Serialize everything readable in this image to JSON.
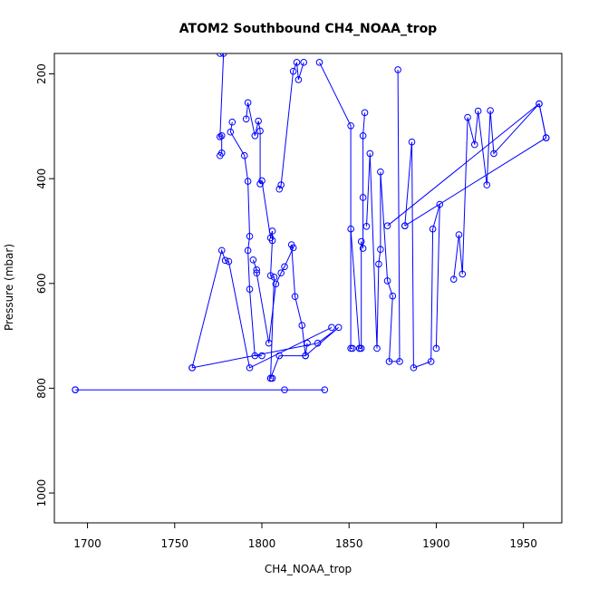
{
  "chart_data": {
    "type": "scatter",
    "title": "ATOM2 Southbound CH4_NOAA_trop",
    "xlabel": "CH4_NOAA_trop",
    "ylabel": "Pressure (mbar)",
    "xlim": [
      1681,
      1972
    ],
    "ylim": [
      1057,
      161
    ],
    "y_reversed": true,
    "x_ticks": [
      1700,
      1750,
      1800,
      1850,
      1900,
      1950
    ],
    "y_ticks": [
      200,
      400,
      600,
      800,
      1000
    ],
    "grid": false,
    "legend": "none",
    "series_color": "#0000ff",
    "series": [
      {
        "values": [
          [
            1693,
            803
          ],
          [
            1836,
            803
          ],
          [
            1813,
            803
          ],
          [
            1693,
            803
          ]
        ]
      },
      {
        "values": [
          [
            1760,
            761
          ],
          [
            1777,
            537
          ],
          [
            1779,
            556
          ],
          [
            1781,
            558
          ],
          [
            1793,
            761
          ],
          [
            1840,
            684
          ]
        ]
      },
      {
        "values": [
          [
            1760,
            761
          ],
          [
            1832,
            714
          ],
          [
            1844,
            684
          ],
          [
            1825,
            738
          ],
          [
            1810,
            738
          ],
          [
            1805,
            781
          ],
          [
            1806,
            781
          ]
        ]
      },
      {
        "values": [
          [
            1776,
            356
          ],
          [
            1777,
            351
          ],
          [
            1777,
            318
          ],
          [
            1776,
            320
          ],
          [
            1778,
            161
          ],
          [
            1776,
            161
          ]
        ]
      },
      {
        "values": [
          [
            1783,
            292
          ],
          [
            1782,
            311
          ],
          [
            1790,
            356
          ],
          [
            1792,
            405
          ],
          [
            1793,
            510
          ],
          [
            1792,
            537
          ],
          [
            1793,
            611
          ],
          [
            1796,
            738
          ],
          [
            1800,
            738
          ]
        ]
      },
      {
        "values": [
          [
            1791,
            286
          ],
          [
            1792,
            255
          ],
          [
            1796,
            318
          ],
          [
            1798,
            290
          ],
          [
            1799,
            309
          ],
          [
            1799,
            410
          ],
          [
            1800,
            404
          ],
          [
            1805,
            513
          ],
          [
            1806,
            500
          ],
          [
            1806,
            518
          ],
          [
            1805,
            585
          ],
          [
            1807,
            588
          ],
          [
            1805,
            781
          ]
        ]
      },
      {
        "values": [
          [
            1795,
            555
          ],
          [
            1797,
            574
          ],
          [
            1797,
            580
          ],
          [
            1804,
            714
          ],
          [
            1808,
            601
          ],
          [
            1811,
            580
          ],
          [
            1813,
            568
          ],
          [
            1818,
            532
          ],
          [
            1817,
            526
          ],
          [
            1819,
            625
          ],
          [
            1823,
            680
          ],
          [
            1825,
            738
          ],
          [
            1826,
            714
          ]
        ]
      },
      {
        "values": [
          [
            1810,
            420
          ],
          [
            1811,
            412
          ],
          [
            1818,
            195
          ],
          [
            1820,
            178
          ],
          [
            1821,
            211
          ],
          [
            1824,
            178
          ]
        ]
      },
      {
        "values": [
          [
            1833,
            178
          ],
          [
            1851,
            299
          ],
          [
            1851,
            724
          ],
          [
            1852,
            724
          ]
        ]
      },
      {
        "values": [
          [
            1851,
            496
          ],
          [
            1856,
            724
          ],
          [
            1856,
            724
          ],
          [
            1857,
            724
          ],
          [
            1857,
            520
          ],
          [
            1858,
            533
          ],
          [
            1858,
            436
          ],
          [
            1858,
            318
          ],
          [
            1859,
            274
          ]
        ]
      },
      {
        "values": [
          [
            1860,
            491
          ],
          [
            1862,
            352
          ],
          [
            1866,
            724
          ],
          [
            1867,
            563
          ],
          [
            1868,
            535
          ],
          [
            1868,
            387
          ],
          [
            1872,
            595
          ],
          [
            1875,
            624
          ],
          [
            1873,
            749
          ],
          [
            1879,
            749
          ],
          [
            1878,
            192
          ]
        ]
      },
      {
        "values": [
          [
            1882,
            490
          ],
          [
            1886,
            330
          ],
          [
            1887,
            761
          ],
          [
            1897,
            749
          ],
          [
            1898,
            496
          ],
          [
            1902,
            449
          ],
          [
            1900,
            724
          ]
        ]
      },
      {
        "values": [
          [
            1910,
            592
          ],
          [
            1913,
            507
          ],
          [
            1915,
            582
          ],
          [
            1918,
            283
          ],
          [
            1922,
            335
          ],
          [
            1924,
            271
          ],
          [
            1929,
            412
          ],
          [
            1931,
            270
          ],
          [
            1933,
            352
          ],
          [
            1959,
            257
          ],
          [
            1963,
            322
          ]
        ]
      },
      {
        "values": [
          [
            1872,
            490
          ],
          [
            1959,
            257
          ],
          [
            1963,
            322
          ],
          [
            1882,
            490
          ]
        ]
      }
    ]
  }
}
